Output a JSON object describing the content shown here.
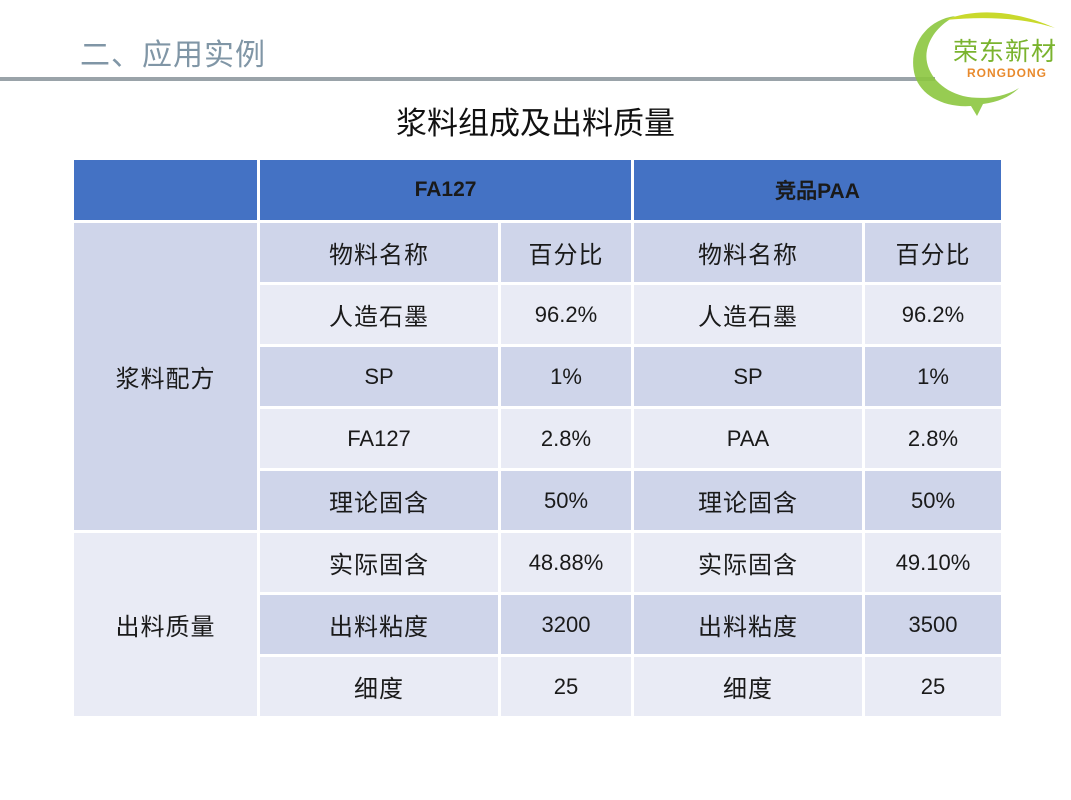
{
  "header": {
    "section_title": "二、应用实例",
    "logo_cn": "荣东新材",
    "logo_en": "RONGDONG"
  },
  "colors": {
    "header_blue": "#4472c4",
    "row_dark": "#cfd5ea",
    "row_light": "#e9ebf5",
    "title_gray": "#8096a6",
    "logo_green": "#7ab32e",
    "logo_orange": "#e88a2d"
  },
  "table": {
    "title": "浆料组成及出料质量",
    "columns": [
      "",
      "FA127",
      "竞品PAA"
    ],
    "groups": [
      {
        "name": "浆料配方",
        "rows": [
          [
            "物料名称",
            "百分比",
            "物料名称",
            "百分比"
          ],
          [
            "人造石墨",
            "96.2%",
            "人造石墨",
            "96.2%"
          ],
          [
            "SP",
            "1%",
            "SP",
            "1%"
          ],
          [
            "FA127",
            "2.8%",
            "PAA",
            "2.8%"
          ],
          [
            "理论固含",
            "50%",
            "理论固含",
            "50%"
          ]
        ]
      },
      {
        "name": "出料质量",
        "rows": [
          [
            "实际固含",
            "48.88%",
            "实际固含",
            "49.10%"
          ],
          [
            "出料粘度",
            "3200",
            "出料粘度",
            "3500"
          ],
          [
            "细度",
            "25",
            "细度",
            "25"
          ]
        ]
      }
    ]
  }
}
